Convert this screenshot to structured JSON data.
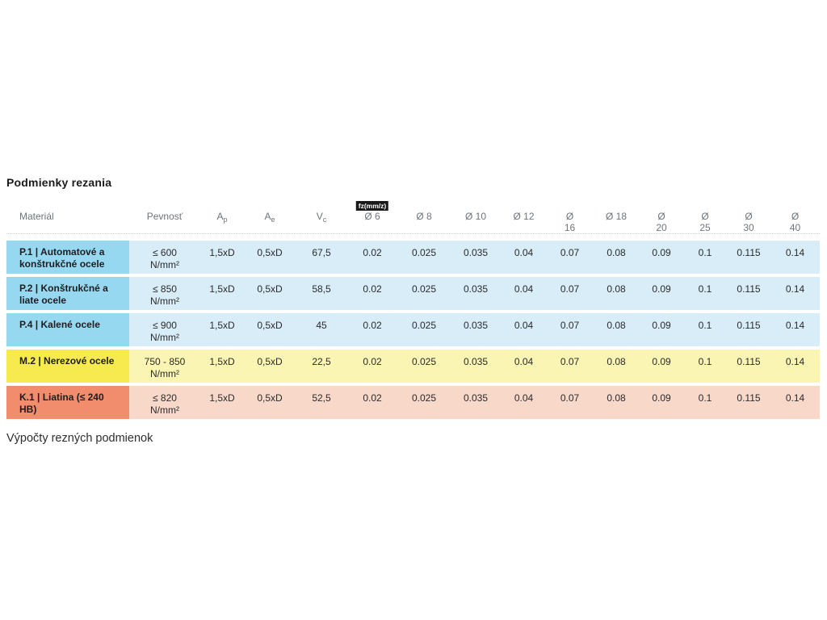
{
  "page": {
    "title": "Podmienky rezania",
    "footer_text": "Výpočty rezných podmienok"
  },
  "table": {
    "header": {
      "material": "Materiál",
      "strength": "Pevnosť",
      "ap": {
        "main": "A",
        "sub": "p"
      },
      "ae": {
        "main": "A",
        "sub": "e"
      },
      "vc": {
        "main": "V",
        "sub": "c"
      },
      "fz_badge": "fz(mm/z)",
      "diameters": [
        "Ø 6",
        "Ø 8",
        "Ø 10",
        "Ø 12",
        "Ø\n16",
        "Ø 18",
        "Ø\n20",
        "Ø\n25",
        "Ø\n30",
        "Ø\n40"
      ]
    },
    "themes": {
      "blue": {
        "material": "#97d8f1",
        "cells": "#d9edf8"
      },
      "yellow": {
        "material": "#f7ea4f",
        "cells": "#fbf5b3"
      },
      "red": {
        "material": "#f18c6c",
        "cells": "#f8d8c9"
      }
    },
    "rows": [
      {
        "material": "P.1 | Automatové a konštrukčné ocele",
        "strength": "≤ 600\nN/mm²",
        "ap": "1,5xD",
        "ae": "0,5xD",
        "vc": "67,5",
        "fz": [
          "0.02",
          "0.025",
          "0.035",
          "0.04",
          "0.07",
          "0.08",
          "0.09",
          "0.1",
          "0.115",
          "0.14"
        ]
      },
      {
        "material": "P.2 | Konštrukčné a liate ocele",
        "strength": "≤ 850\nN/mm²",
        "ap": "1,5xD",
        "ae": "0,5xD",
        "vc": "58,5",
        "fz": [
          "0.02",
          "0.025",
          "0.035",
          "0.04",
          "0.07",
          "0.08",
          "0.09",
          "0.1",
          "0.115",
          "0.14"
        ]
      },
      {
        "material": "P.4 | Kalené ocele",
        "strength": "≤ 900\nN/mm²",
        "ap": "1,5xD",
        "ae": "0,5xD",
        "vc": "45",
        "fz": [
          "0.02",
          "0.025",
          "0.035",
          "0.04",
          "0.07",
          "0.08",
          "0.09",
          "0.1",
          "0.115",
          "0.14"
        ]
      },
      {
        "material": "M.2 | Nerezové ocele",
        "strength": "750 - 850\nN/mm²",
        "ap": "1,5xD",
        "ae": "0,5xD",
        "vc": "22,5",
        "fz": [
          "0.02",
          "0.025",
          "0.035",
          "0.04",
          "0.07",
          "0.08",
          "0.09",
          "0.1",
          "0.115",
          "0.14"
        ]
      },
      {
        "material": "K.1 | Liatina (≤ 240 HB)",
        "strength": "≤ 820\nN/mm²",
        "ap": "1,5xD",
        "ae": "0,5xD",
        "vc": "52,5",
        "fz": [
          "0.02",
          "0.025",
          "0.035",
          "0.04",
          "0.07",
          "0.08",
          "0.09",
          "0.1",
          "0.115",
          "0.14"
        ]
      }
    ]
  }
}
